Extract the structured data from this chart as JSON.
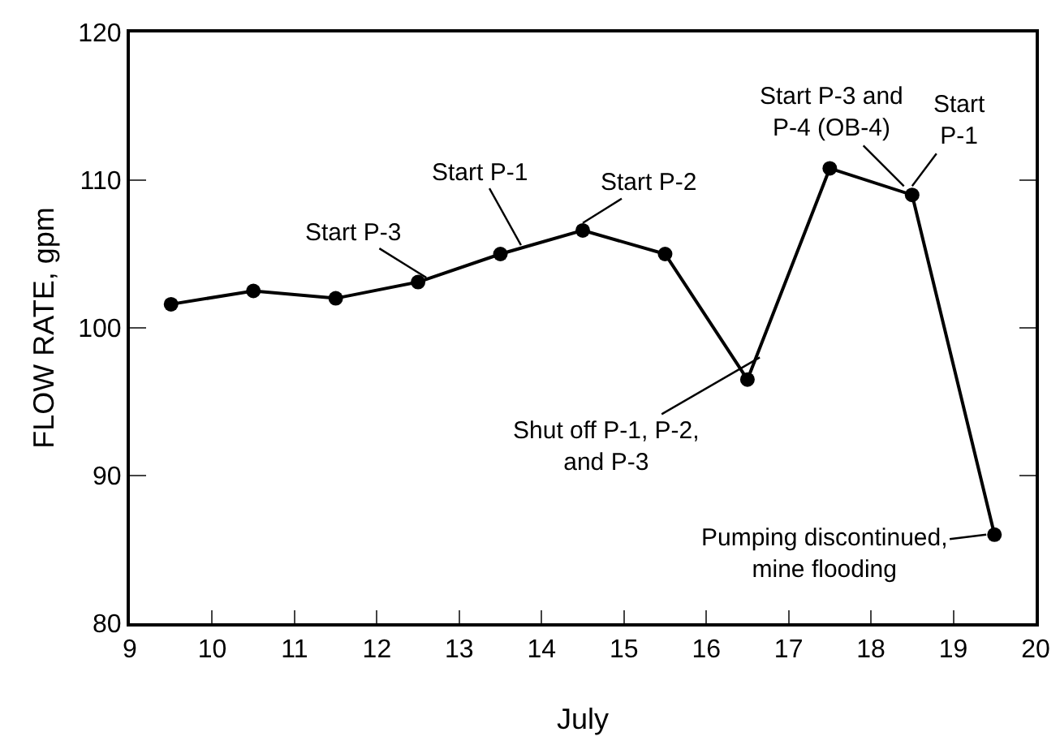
{
  "chart_data": {
    "type": "line",
    "xlabel": "July",
    "ylabel": "FLOW RATE, gpm",
    "x": [
      9.5,
      10.5,
      11.5,
      12.5,
      13.5,
      14.5,
      15.5,
      16.5,
      17.5,
      18.5,
      19.5
    ],
    "values": [
      101.6,
      102.5,
      102.0,
      103.1,
      105.0,
      106.6,
      105.0,
      96.5,
      110.8,
      109.0,
      86
    ],
    "color": "#000000",
    "marker": "circle",
    "line_style": "solid",
    "xlim": [
      9,
      20
    ],
    "xticks": [
      9,
      10,
      11,
      12,
      13,
      14,
      15,
      16,
      17,
      18,
      19,
      20
    ],
    "ylim": [
      80,
      120
    ],
    "yticks": [
      80,
      90,
      100,
      110,
      120
    ],
    "annotations": [
      {
        "text": "Start P-3",
        "x": 12.6,
        "y": 103.4
      },
      {
        "text": "Start P-1",
        "x": 13.75,
        "y": 105.6
      },
      {
        "text": "Start P-2",
        "x": 14.5,
        "y": 107.1
      },
      {
        "text": "Shut off P-1, P-2,\nand P-3",
        "x": 16.65,
        "y": 98
      },
      {
        "text": "Start P-3 and\nP-4 (OB-4)",
        "x": 18.4,
        "y": 109.6
      },
      {
        "text": "Start\nP-1",
        "x": 18.5,
        "y": 109.6
      },
      {
        "text": "Pumping discontinued,\nmine flooding",
        "x": 19.4,
        "y": 86
      }
    ]
  }
}
